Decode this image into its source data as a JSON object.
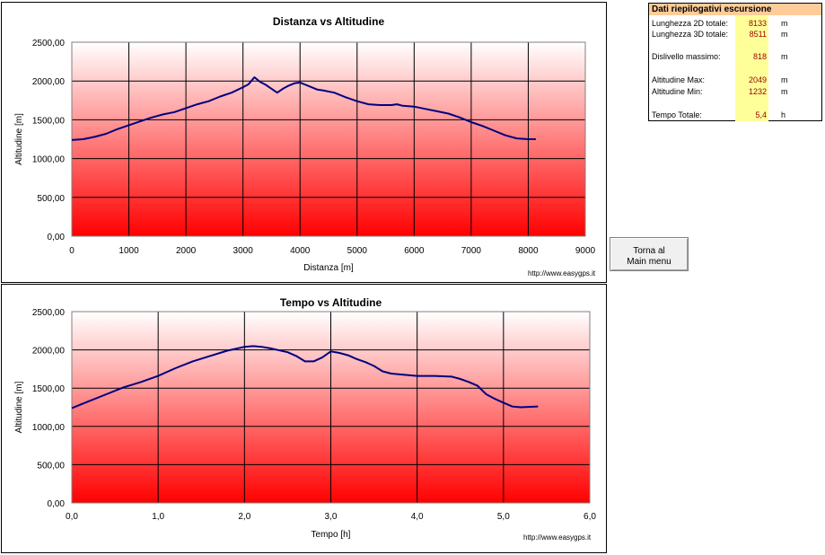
{
  "summary": {
    "title": "Dati riepilogativi escursione",
    "rows": [
      {
        "label": "Lunghezza 2D totale:",
        "value": "8133",
        "unit": "m"
      },
      {
        "label": "Lunghezza 3D totale:",
        "value": "8511",
        "unit": "m"
      },
      {
        "label": "Dislivello massimo:",
        "value": "818",
        "unit": "m"
      },
      {
        "label": "Altitudine Max:",
        "value": "2049",
        "unit": "m"
      },
      {
        "label": "Altitudine Min:",
        "value": "1232",
        "unit": "m"
      },
      {
        "label": "Tempo Totale:",
        "value": "5,4",
        "unit": "h"
      }
    ]
  },
  "back_button": {
    "line1": "Torna al",
    "line2": "Main menu"
  },
  "colors": {
    "line": "#000080",
    "gradient_top": "#ffffff",
    "gradient_bottom": "#ff0000",
    "summary_header": "#ffcc99",
    "summary_values": "#ffff99",
    "value_text": "#990000"
  },
  "chart_data": [
    {
      "type": "line",
      "title": "Distanza vs Altitudine",
      "xlabel": "Distanza [m]",
      "ylabel": "Altitudine [m]",
      "source": "http://www.easygps.it",
      "xlim": [
        0,
        9000
      ],
      "ylim": [
        0,
        2500
      ],
      "xticks": [
        "0",
        "1000",
        "2000",
        "3000",
        "4000",
        "5000",
        "6000",
        "7000",
        "8000",
        "9000"
      ],
      "yticks": [
        "0,00",
        "500,00",
        "1000,00",
        "1500,00",
        "2000,00",
        "2500,00"
      ],
      "grid": true,
      "series": [
        {
          "x": [
            0,
            200,
            400,
            600,
            800,
            1000,
            1200,
            1400,
            1600,
            1800,
            2000,
            2200,
            2400,
            2600,
            2800,
            3000,
            3100,
            3200,
            3300,
            3400,
            3500,
            3600,
            3700,
            3800,
            3900,
            4000,
            4100,
            4200,
            4300,
            4400,
            4600,
            4800,
            5000,
            5200,
            5400,
            5600,
            5700,
            5800,
            6000,
            6200,
            6400,
            6600,
            6800,
            7000,
            7200,
            7400,
            7600,
            7800,
            8000,
            8133
          ],
          "y": [
            1240,
            1250,
            1280,
            1320,
            1380,
            1430,
            1480,
            1530,
            1570,
            1600,
            1650,
            1700,
            1740,
            1800,
            1850,
            1920,
            1960,
            2049,
            1990,
            1950,
            1900,
            1850,
            1900,
            1940,
            1970,
            1980,
            1950,
            1920,
            1890,
            1880,
            1850,
            1790,
            1740,
            1700,
            1690,
            1690,
            1700,
            1680,
            1670,
            1640,
            1610,
            1580,
            1530,
            1470,
            1420,
            1360,
            1300,
            1260,
            1250,
            1250
          ]
        }
      ]
    },
    {
      "type": "line",
      "title": "Tempo vs Altitudine",
      "xlabel": "Tempo [h]",
      "ylabel": "Altitudine [m]",
      "source": "http://www.easygps.it",
      "xlim": [
        0,
        6
      ],
      "ylim": [
        0,
        2500
      ],
      "xticks": [
        "0,0",
        "1,0",
        "2,0",
        "3,0",
        "4,0",
        "5,0",
        "6,0"
      ],
      "yticks": [
        "0,00",
        "500,00",
        "1000,00",
        "1500,00",
        "2000,00",
        "2500,00"
      ],
      "grid": true,
      "series": [
        {
          "x": [
            0,
            0.2,
            0.4,
            0.6,
            0.8,
            1.0,
            1.2,
            1.4,
            1.6,
            1.8,
            2.0,
            2.1,
            2.2,
            2.3,
            2.5,
            2.6,
            2.7,
            2.8,
            2.9,
            3.0,
            3.1,
            3.2,
            3.3,
            3.4,
            3.5,
            3.6,
            3.7,
            3.8,
            3.9,
            4.0,
            4.2,
            4.4,
            4.5,
            4.6,
            4.7,
            4.8,
            4.9,
            5.0,
            5.1,
            5.2,
            5.4
          ],
          "y": [
            1240,
            1330,
            1420,
            1510,
            1580,
            1660,
            1760,
            1850,
            1920,
            1990,
            2040,
            2049,
            2040,
            2020,
            1970,
            1920,
            1850,
            1850,
            1900,
            1980,
            1960,
            1930,
            1880,
            1840,
            1790,
            1720,
            1690,
            1680,
            1670,
            1660,
            1660,
            1650,
            1620,
            1580,
            1530,
            1420,
            1360,
            1310,
            1260,
            1250,
            1260
          ]
        }
      ]
    }
  ]
}
